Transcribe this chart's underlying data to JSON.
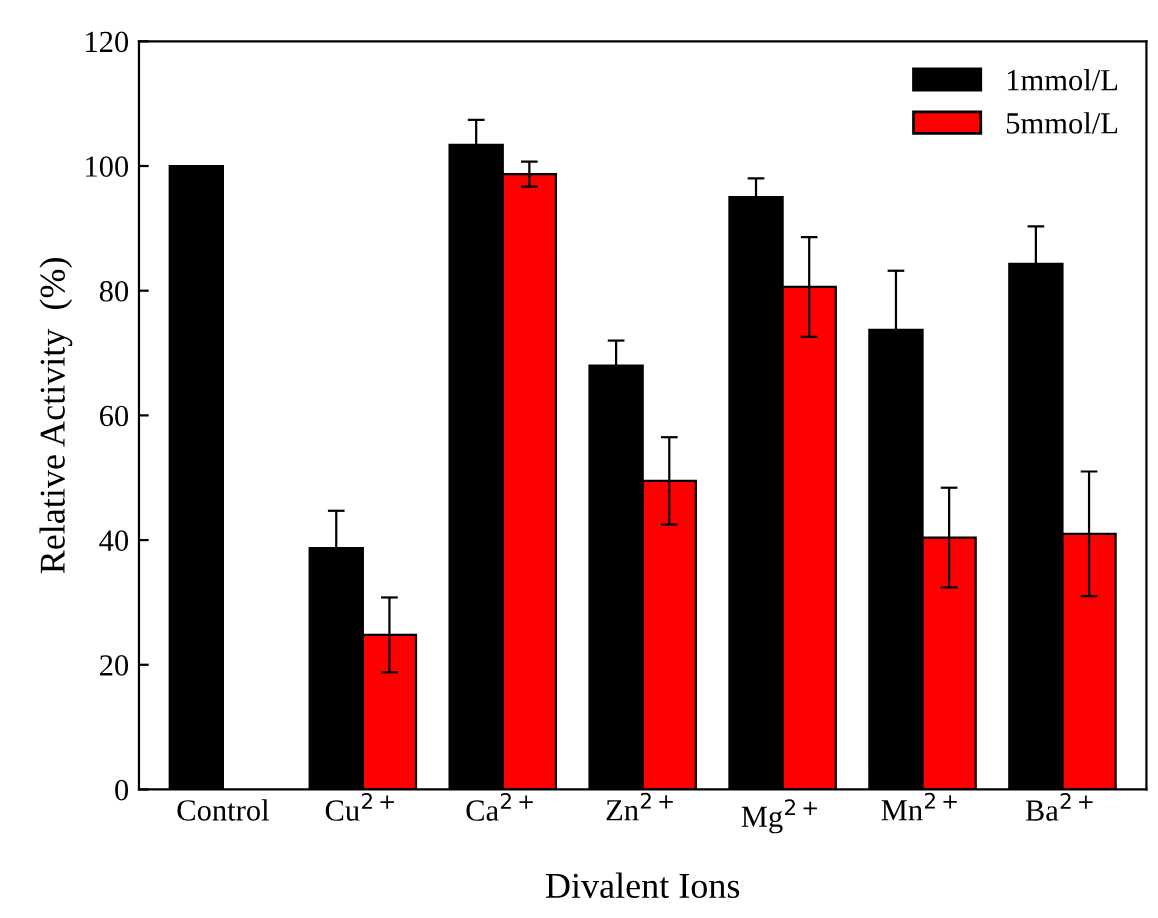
{
  "chart_data": {
    "type": "bar",
    "xlabel": "Divalent Ions",
    "ylabel": "Relative Activity  (%)",
    "categories": [
      "Control",
      "Cu$^{2+}$",
      "Ca$^{2+}$",
      "Zn$^{2+}$",
      "Mg$^{2+}$",
      "Mn$^{2+}$",
      "Ba$^{2+}$"
    ],
    "series": [
      {
        "name": "1mmol/L",
        "color": "#000000",
        "values": [
          100,
          38.7,
          103.4,
          68,
          95,
          73.7,
          84.3
        ],
        "errors": [
          null,
          6,
          4,
          4,
          3,
          9.5,
          6
        ]
      },
      {
        "name": "5mmol/L",
        "color": "#ff0000",
        "values": [
          null,
          24.8,
          98.7,
          49.5,
          80.6,
          40.4,
          41
        ],
        "errors": [
          null,
          6,
          2,
          7,
          8,
          8,
          10
        ]
      }
    ],
    "ylim": [
      0,
      120
    ],
    "yticks": [
      0,
      20,
      40,
      60,
      80,
      100,
      120
    ],
    "legend": "top right",
    "grid": false
  }
}
